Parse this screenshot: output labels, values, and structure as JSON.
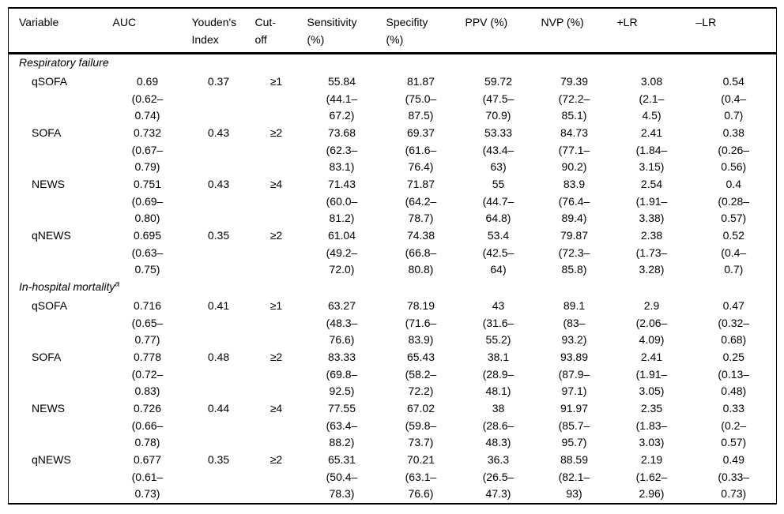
{
  "page": {
    "background": "#ffffff",
    "text_color": "#000000",
    "border_color": "#000000"
  },
  "table": {
    "columns": [
      {
        "id": "variable",
        "label": "Variable"
      },
      {
        "id": "auc",
        "label": "AUC"
      },
      {
        "id": "youden",
        "label": "Youden's\nIndex"
      },
      {
        "id": "cutoff",
        "label": "Cut-\noff"
      },
      {
        "id": "sensitivity",
        "label": "Sensitivity\n(%)"
      },
      {
        "id": "specifity",
        "label": "Specifity\n(%)"
      },
      {
        "id": "ppv",
        "label": "PPV (%)"
      },
      {
        "id": "nvp",
        "label": "NVP (%)"
      },
      {
        "id": "plr",
        "label": "+LR"
      },
      {
        "id": "nlr",
        "label": "–LR"
      }
    ],
    "sections": [
      {
        "title": "Respiratory failure",
        "superscript": "",
        "rows": [
          {
            "cells": [
              "qSOFA",
              "0.69\n(0.62–\n0.74)",
              "0.37",
              "≥1",
              "55.84\n(44.1–\n67.2)",
              "81.87\n(75.0–\n87.5)",
              "59.72\n(47.5–\n70.9)",
              "79.39\n(72.2–\n85.1)",
              "3.08\n(2.1–\n4.5)",
              "0.54\n(0.4–\n0.7)"
            ]
          },
          {
            "cells": [
              "SOFA",
              "0.732\n(0.67–\n0.79)",
              "0.43",
              "≥2",
              "73.68\n(62.3–\n83.1)",
              "69.37\n(61.6–\n76.4)",
              "53.33\n(43.4–\n63)",
              "84.73\n(77.1–\n90.2)",
              "2.41\n(1.84–\n3.15)",
              "0.38\n(0.26–\n0.56)"
            ]
          },
          {
            "cells": [
              "NEWS",
              "0.751\n(0.69–\n0.80)",
              "0.43",
              "≥4",
              "71.43\n(60.0–\n81.2)",
              "71.87\n(64.2–\n78.7)",
              "55\n(44.7–\n64.8)",
              "83.9\n(76.4–\n89.4)",
              "2.54\n(1.91–\n3.38)",
              "0.4\n(0.28–\n0.57)"
            ]
          },
          {
            "cells": [
              "qNEWS",
              "0.695\n(0.63–\n0.75)",
              "0.35",
              "≥2",
              "61.04\n(49.2–\n72.0)",
              "74.38\n(66.8–\n80.8)",
              "53.4\n(42.5–\n64)",
              "79.87\n(72.3–\n85.8)",
              "2.38\n(1.73–\n3.28)",
              "0.52\n(0.4–\n0.7)"
            ]
          }
        ]
      },
      {
        "title": "In-hospital mortality",
        "superscript": "a",
        "rows": [
          {
            "cells": [
              "qSOFA",
              "0.716\n(0.65–\n0.77)",
              "0.41",
              "≥1",
              "63.27\n(48.3–\n76.6)",
              "78.19\n(71.6–\n83.9)",
              "43\n(31.6–\n55.2)",
              "89.1\n(83–\n93.2)",
              "2.9\n(2.06–\n4.09)",
              "0.47\n(0.32–\n0.68)"
            ]
          },
          {
            "cells": [
              "SOFA",
              "0.778\n(0.72–\n0.83)",
              "0.48",
              "≥2",
              "83.33\n(69.8–\n92.5)",
              "65.43\n(58.2–\n72.2)",
              "38.1\n(28.9–\n48.1)",
              "93.89\n(87.9–\n97.1)",
              "2.41\n(1.91–\n3.05)",
              "0.25\n(0.13–\n0.48)"
            ]
          },
          {
            "cells": [
              "NEWS",
              "0.726\n(0.66–\n0.78)",
              "0.44",
              "≥4",
              "77.55\n(63.4–\n88.2)",
              "67.02\n(59.8–\n73.7)",
              "38\n(28.6–\n48.3)",
              "91.97\n(85.7–\n95.7)",
              "2.35\n(1.83–\n3.03)",
              "0.33\n(0.2–\n0.57)"
            ]
          },
          {
            "cells": [
              "qNEWS",
              "0.677\n(0.61–\n0.73)",
              "0.35",
              "≥2",
              "65.31\n(50.4–\n78.3)",
              "70.21\n(63.1–\n76.6)",
              "36.3\n(26.5–\n47.3)",
              "88.59\n(82.1–\n93)",
              "2.19\n(1.62–\n2.96)",
              "0.49\n(0.33–\n0.73)"
            ]
          }
        ]
      }
    ]
  }
}
